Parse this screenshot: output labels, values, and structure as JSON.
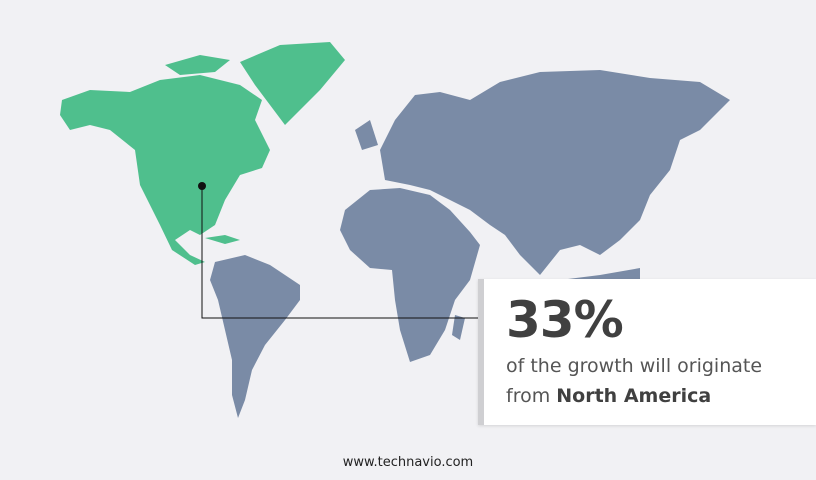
{
  "colors": {
    "highlight_region": "#4fbf8d",
    "other_regions": "#7a8ba6",
    "background": "#f1f1f4"
  },
  "highlighted_region": "North America",
  "callout": {
    "value": "33%",
    "text_line1": "of the growth will originate",
    "text_prefix": "from",
    "region": "North America"
  },
  "footer": {
    "website": "www.technavio.com"
  }
}
